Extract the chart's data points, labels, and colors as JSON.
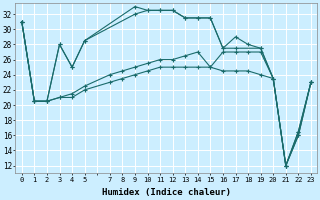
{
  "xlabel": "Humidex (Indice chaleur)",
  "bg_color": "#cceeff",
  "grid_color": "#ffffff",
  "line_color": "#1a6b6b",
  "xlim": [
    -0.5,
    23.5
  ],
  "ylim": [
    11,
    33.5
  ],
  "yticks": [
    12,
    14,
    16,
    18,
    20,
    22,
    24,
    26,
    28,
    30,
    32
  ],
  "xtick_labels": [
    "0",
    "1",
    "2",
    "3",
    "4",
    "5",
    "",
    "7",
    "8",
    "9",
    "10",
    "11",
    "12",
    "13",
    "14",
    "15",
    "16",
    "17",
    "18",
    "19",
    "20",
    "21",
    "22",
    "23"
  ],
  "xtick_pos": [
    0,
    1,
    2,
    3,
    4,
    5,
    6,
    7,
    8,
    9,
    10,
    11,
    12,
    13,
    14,
    15,
    16,
    17,
    18,
    19,
    20,
    21,
    22,
    23
  ],
  "series": [
    {
      "x": [
        0,
        1,
        2,
        3,
        4,
        5,
        9,
        10,
        11,
        12,
        13,
        14,
        15,
        16,
        17,
        19,
        20,
        21,
        22,
        23
      ],
      "y": [
        31,
        20.5,
        20.5,
        28,
        25,
        28.5,
        32,
        32.5,
        32.5,
        32.5,
        31.5,
        31.5,
        31.5,
        27.5,
        27.5,
        27.5,
        23.5,
        12,
        16,
        23
      ]
    },
    {
      "x": [
        0,
        1,
        2,
        3,
        4,
        5,
        7,
        8,
        9,
        10,
        11,
        12,
        13,
        14,
        15,
        16,
        17,
        18,
        19,
        20,
        21,
        22,
        23
      ],
      "y": [
        31,
        20.5,
        20.5,
        21,
        21,
        22,
        23,
        23.5,
        24,
        24.5,
        25,
        25,
        25,
        25,
        25,
        24.5,
        24.5,
        24.5,
        24,
        23.5,
        12,
        16.5,
        23
      ]
    },
    {
      "x": [
        0,
        1,
        2,
        3,
        4,
        5,
        7,
        8,
        9,
        10,
        11,
        12,
        13,
        14,
        15,
        16,
        17,
        18,
        19,
        20,
        21,
        22,
        23
      ],
      "y": [
        31,
        20.5,
        20.5,
        21,
        21.5,
        22.5,
        24,
        24.5,
        25,
        25.5,
        26,
        26,
        26.5,
        27,
        25,
        27,
        27,
        27,
        27,
        23.5,
        12,
        16.5,
        23
      ]
    },
    {
      "x": [
        0,
        1,
        2,
        3,
        4,
        5,
        9,
        10,
        11,
        12,
        13,
        14,
        15,
        16,
        17,
        18,
        19,
        20,
        21,
        22,
        23
      ],
      "y": [
        31,
        20.5,
        20.5,
        28,
        25,
        28.5,
        33,
        32.5,
        32.5,
        32.5,
        31.5,
        31.5,
        31.5,
        27.5,
        29,
        28,
        27.5,
        23.5,
        12,
        16,
        23
      ]
    }
  ]
}
